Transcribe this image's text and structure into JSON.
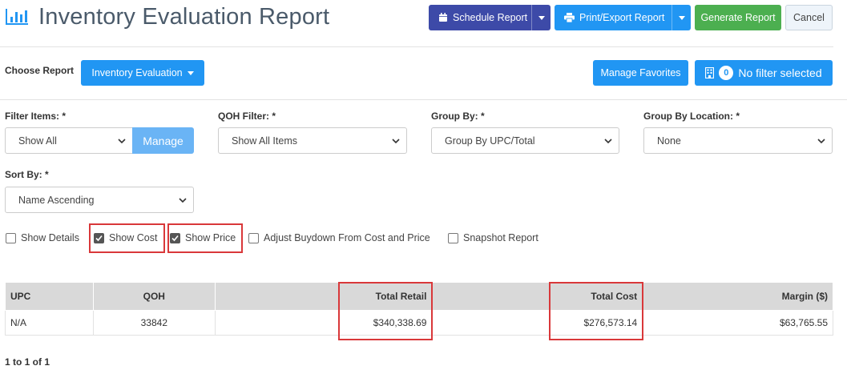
{
  "header": {
    "title": "Inventory Evaluation Report",
    "icon": "bar-chart-icon",
    "schedule_label": "Schedule Report",
    "print_label": "Print/Export Report",
    "generate_label": "Generate Report",
    "cancel_label": "Cancel"
  },
  "toolbar": {
    "choose_label": "Choose Report",
    "report_value": "Inventory Evaluation",
    "favorites_label": "Manage Favorites",
    "filter_count": "0",
    "filter_label": "No filter selected"
  },
  "filters": {
    "filter_items": {
      "label": "Filter Items: *",
      "value": "Show All",
      "manage_label": "Manage"
    },
    "qoh": {
      "label": "QOH Filter: *",
      "value": "Show All Items"
    },
    "group_by": {
      "label": "Group By: *",
      "value": "Group By UPC/Total"
    },
    "group_loc": {
      "label": "Group By Location: *",
      "value": "None"
    },
    "sort_by": {
      "label": "Sort By: *",
      "value": "Name Ascending"
    }
  },
  "options": [
    {
      "label": "Show Details",
      "checked": false
    },
    {
      "label": "Show Cost",
      "checked": true
    },
    {
      "label": "Show Price",
      "checked": true
    },
    {
      "label": "Adjust Buydown From Cost and Price",
      "checked": false
    },
    {
      "label": "Snapshot Report",
      "checked": false
    }
  ],
  "table": {
    "headers": [
      "UPC",
      "QOH",
      "Total Retail",
      "Total Cost",
      "Margin ($)"
    ],
    "rows": [
      [
        "N/A",
        "33842",
        "$340,338.69",
        "$276,573.14",
        "$63,765.55"
      ]
    ]
  },
  "pager": "1 to 1 of 1",
  "colors": {
    "primary": "#2196f3",
    "schedule": "#3d4aa8",
    "success": "#4caf50",
    "highlight": "#d9383a"
  }
}
